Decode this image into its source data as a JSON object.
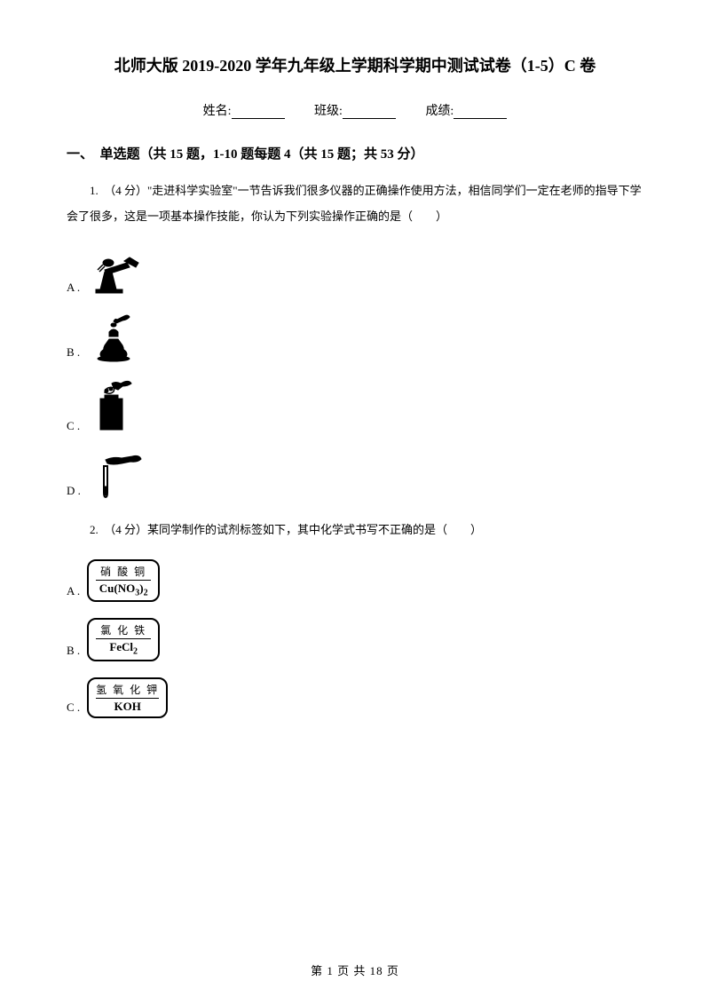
{
  "title": "北师大版 2019-2020 学年九年级上学期科学期中测试试卷（1-5）C 卷",
  "info": {
    "name_label": "姓名:",
    "class_label": "班级:",
    "score_label": "成绩:"
  },
  "section_header": "一、　单选题（共 15 题，1-10 题每题 4（共 15 题；共 53 分）",
  "q1": {
    "stem": "1.　（4 分）\"走进科学实验室\"一节告诉我们很多仪器的正确操作使用方法，相信同学们一定在老师的指导下学会了很多，这是一项基本操作技能，你认为下列实验操作正确的是（　　）",
    "options": {
      "a": "A .",
      "b": "B .",
      "c": "C .",
      "d": "D ."
    }
  },
  "q2": {
    "stem": "2.　（4 分）某同学制作的试剂标签如下，其中化学式书写不正确的是（　　）",
    "options": {
      "a": {
        "label": "A .",
        "name": "硝 酸 铜",
        "formula_html": "Cu(NO<sub>3</sub>)<sub>2</sub>"
      },
      "b": {
        "label": "B .",
        "name": "氯 化 铁",
        "formula_html": "FeCl<sub>2</sub>"
      },
      "c": {
        "label": "C .",
        "name": "氢 氧 化 钾",
        "formula_html": "KOH"
      }
    }
  },
  "footer": "第 1 页 共 18 页",
  "colors": {
    "text": "#000000",
    "background": "#ffffff"
  }
}
